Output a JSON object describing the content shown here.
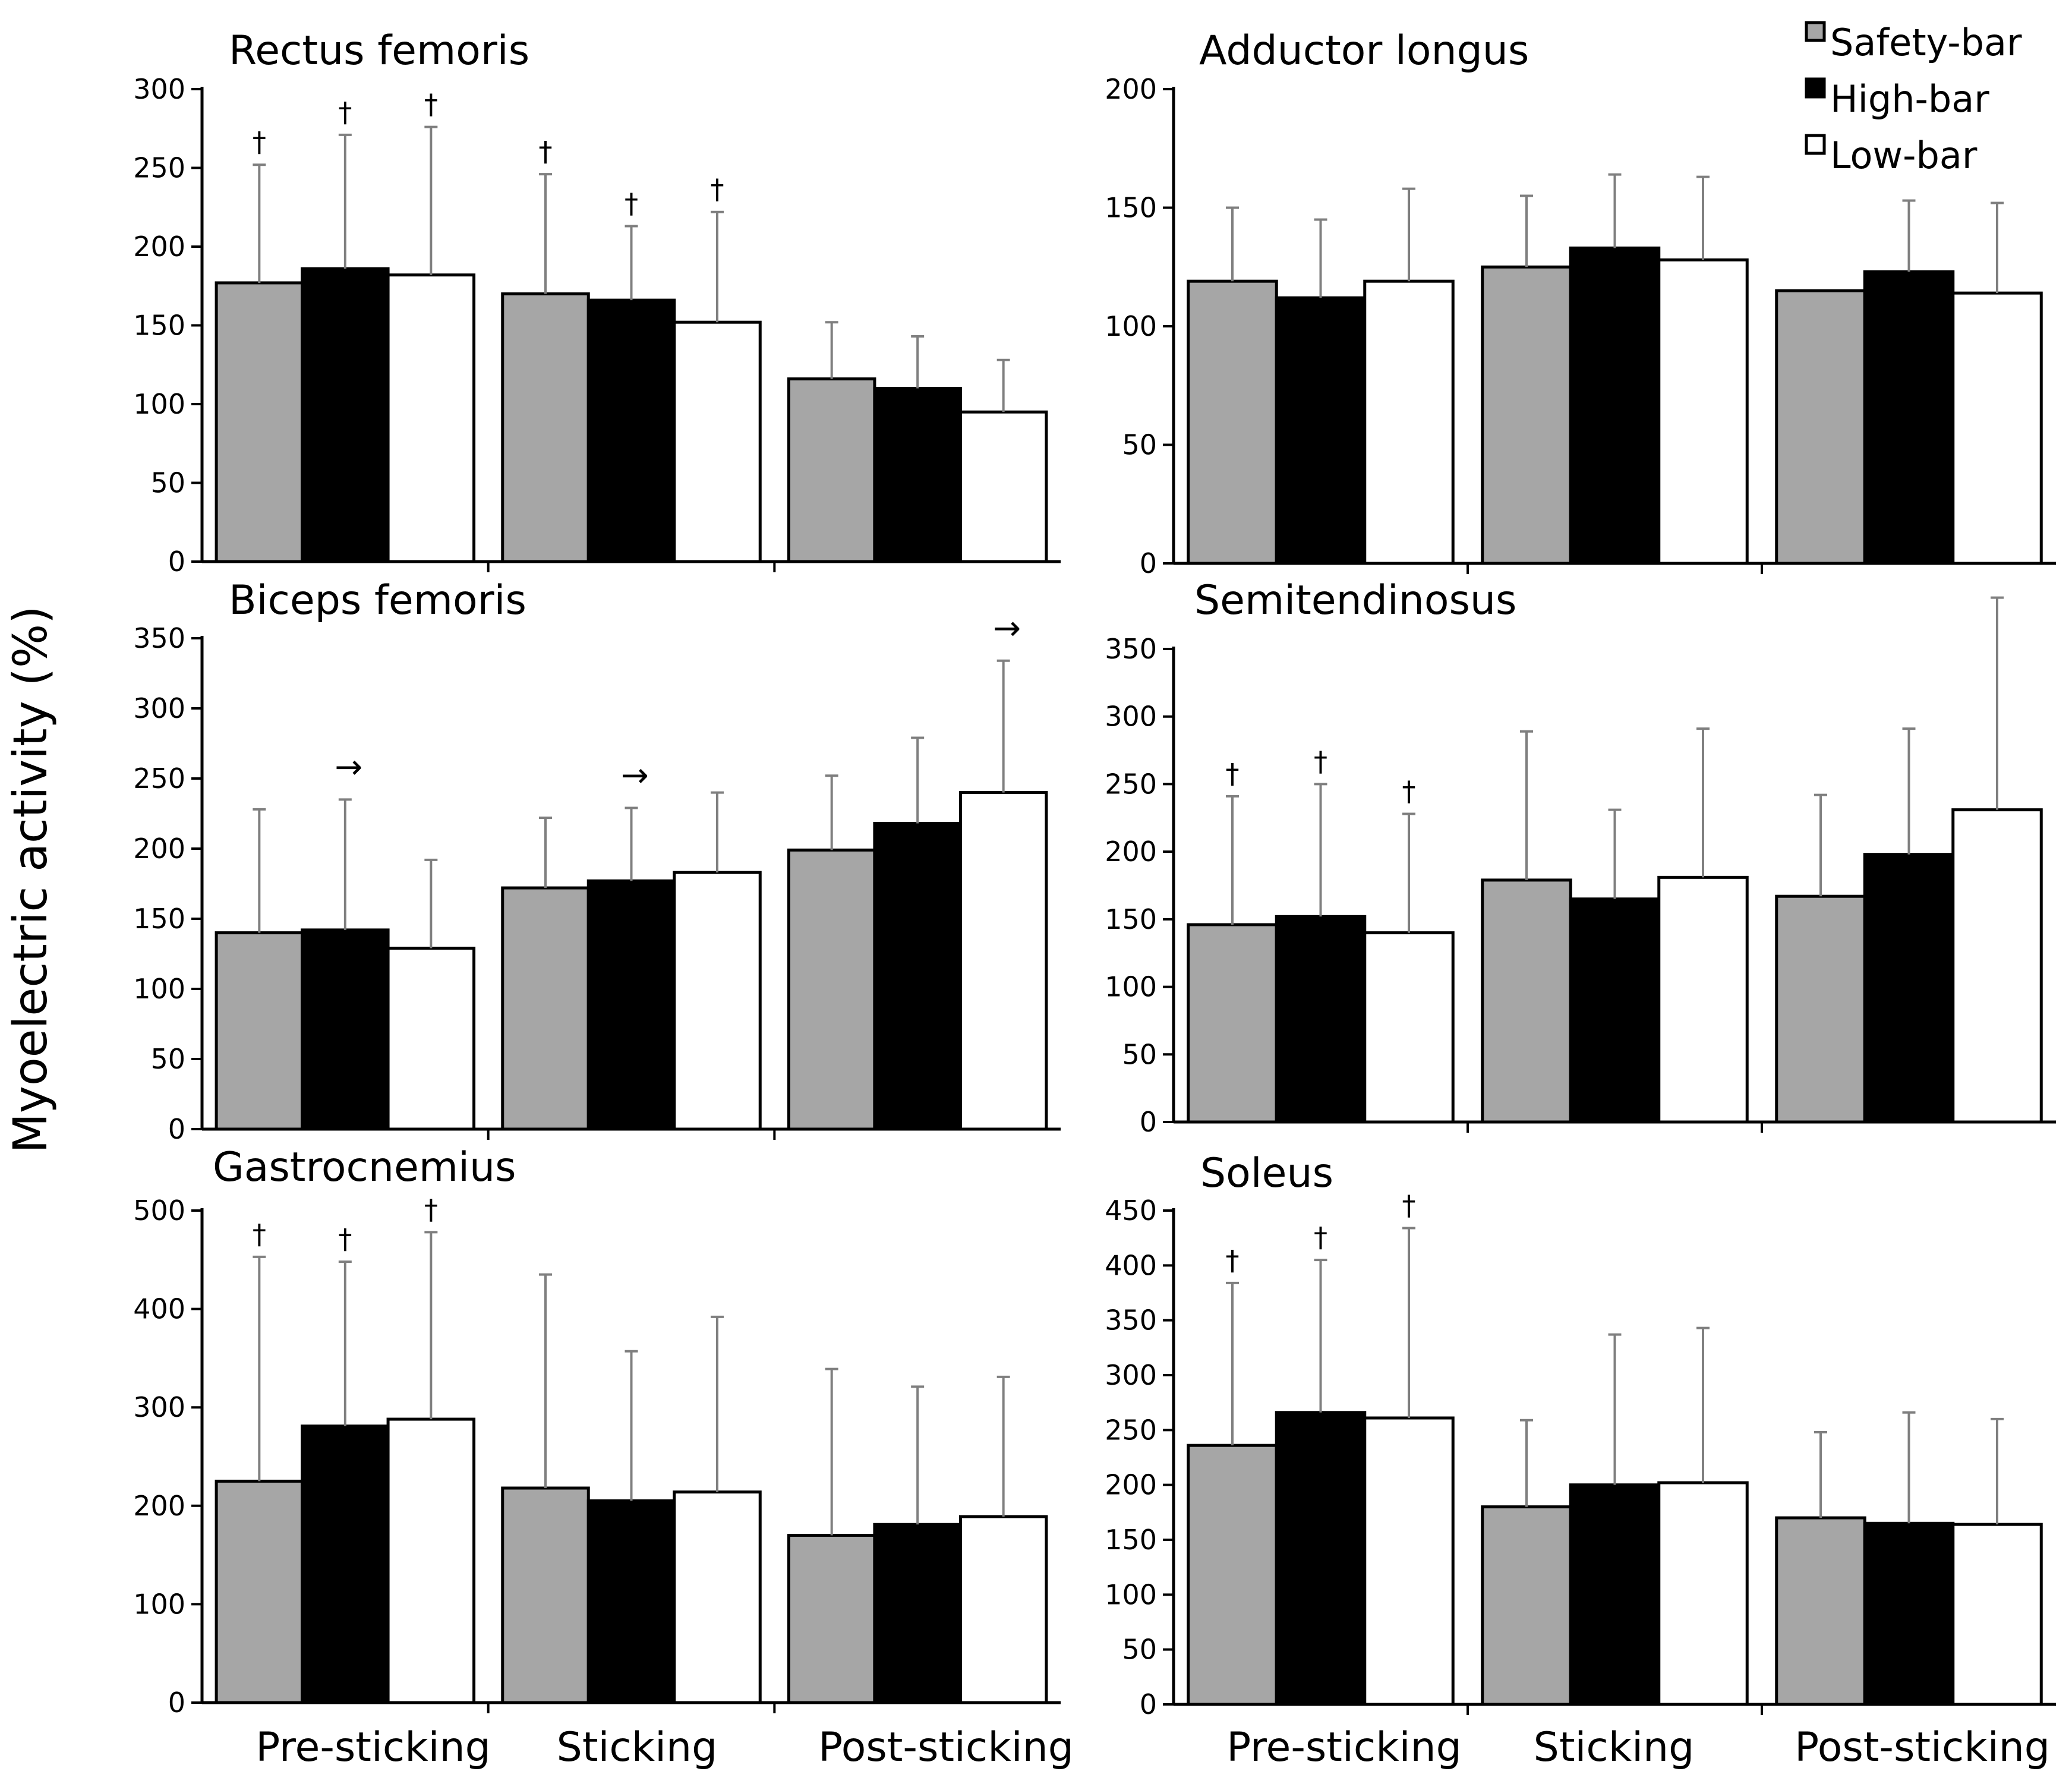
{
  "figure": {
    "ylabel": "Myoelectric activity (%)",
    "legend": [
      {
        "label": "Safety-bar",
        "color": "#a6a6a6"
      },
      {
        "label": "High-bar",
        "color": "#000000"
      },
      {
        "label": "Low-bar",
        "color": "#ffffff"
      }
    ],
    "categories": [
      "Pre-sticking",
      "Sticking",
      "Post-sticking"
    ]
  },
  "chart_data": [
    {
      "type": "bar",
      "title": "Rectus femoris",
      "categories": [
        "Pre-sticking",
        "Sticking",
        "Post-sticking"
      ],
      "ylim": [
        0,
        300
      ],
      "yticks": [
        0,
        50,
        100,
        150,
        200,
        250,
        300
      ],
      "series": [
        {
          "name": "Safety-bar",
          "color": "#a6a6a6",
          "values": [
            177,
            170,
            116
          ],
          "errors": [
            75,
            76,
            36
          ],
          "marks": [
            "†",
            "†",
            ""
          ]
        },
        {
          "name": "High-bar",
          "color": "#000000",
          "values": [
            186,
            166,
            110
          ],
          "errors": [
            85,
            47,
            33
          ],
          "marks": [
            "†",
            "†",
            ""
          ]
        },
        {
          "name": "Low-bar",
          "color": "#ffffff",
          "values": [
            182,
            152,
            95
          ],
          "errors": [
            94,
            70,
            33
          ],
          "marks": [
            "†",
            "†",
            ""
          ]
        }
      ]
    },
    {
      "type": "bar",
      "title": "Adductor longus",
      "categories": [
        "Pre-sticking",
        "Sticking",
        "Post-sticking"
      ],
      "ylim": [
        0,
        200
      ],
      "yticks": [
        0,
        50,
        100,
        150,
        200
      ],
      "series": [
        {
          "name": "Safety-bar",
          "color": "#a6a6a6",
          "values": [
            119,
            125,
            115
          ],
          "errors": [
            31,
            30,
            0
          ],
          "marks": [
            "",
            "",
            ""
          ]
        },
        {
          "name": "High-bar",
          "color": "#000000",
          "values": [
            112,
            133,
            123
          ],
          "errors": [
            33,
            31,
            30
          ],
          "marks": [
            "",
            "",
            ""
          ]
        },
        {
          "name": "Low-bar",
          "color": "#ffffff",
          "values": [
            119,
            128,
            114
          ],
          "errors": [
            39,
            35,
            38
          ],
          "marks": [
            "",
            "",
            ""
          ]
        }
      ]
    },
    {
      "type": "bar",
      "title": "Biceps femoris",
      "categories": [
        "Pre-sticking",
        "Sticking",
        "Post-sticking"
      ],
      "ylim": [
        0,
        350
      ],
      "yticks": [
        0,
        50,
        100,
        150,
        200,
        250,
        300,
        350
      ],
      "series": [
        {
          "name": "Safety-bar",
          "color": "#a6a6a6",
          "values": [
            140,
            172,
            199
          ],
          "errors": [
            88,
            50,
            53
          ],
          "marks": [
            "",
            "",
            ""
          ]
        },
        {
          "name": "High-bar",
          "color": "#000000",
          "values": [
            142,
            177,
            218
          ],
          "errors": [
            93,
            52,
            61
          ],
          "marks": [
            "→",
            "→",
            ""
          ]
        },
        {
          "name": "Low-bar",
          "color": "#ffffff",
          "values": [
            129,
            183,
            240
          ],
          "errors": [
            63,
            57,
            94
          ],
          "marks": [
            "",
            "",
            "→"
          ]
        }
      ]
    },
    {
      "type": "bar",
      "title": "Semitendinosus",
      "categories": [
        "Pre-sticking",
        "Sticking",
        "Post-sticking"
      ],
      "ylim": [
        0,
        350
      ],
      "yticks": [
        0,
        50,
        100,
        150,
        200,
        250,
        300,
        350
      ],
      "series": [
        {
          "name": "Safety-bar",
          "color": "#a6a6a6",
          "values": [
            146,
            179,
            167
          ],
          "errors": [
            95,
            110,
            75
          ],
          "marks": [
            "†",
            "",
            ""
          ]
        },
        {
          "name": "High-bar",
          "color": "#000000",
          "values": [
            152,
            165,
            198
          ],
          "errors": [
            98,
            66,
            93
          ],
          "marks": [
            "†",
            "",
            ""
          ]
        },
        {
          "name": "Low-bar",
          "color": "#ffffff",
          "values": [
            140,
            181,
            231
          ],
          "errors": [
            88,
            110,
            157
          ],
          "marks": [
            "†",
            "",
            ""
          ]
        }
      ]
    },
    {
      "type": "bar",
      "title": "Gastrocnemius",
      "categories": [
        "Pre-sticking",
        "Sticking",
        "Post-sticking"
      ],
      "ylim": [
        0,
        500
      ],
      "yticks": [
        0,
        100,
        200,
        300,
        400,
        500
      ],
      "series": [
        {
          "name": "Safety-bar",
          "color": "#a6a6a6",
          "values": [
            225,
            218,
            170
          ],
          "errors": [
            228,
            217,
            169
          ],
          "marks": [
            "†",
            "",
            ""
          ]
        },
        {
          "name": "High-bar",
          "color": "#000000",
          "values": [
            281,
            205,
            181
          ],
          "errors": [
            167,
            152,
            140
          ],
          "marks": [
            "†",
            "",
            ""
          ]
        },
        {
          "name": "Low-bar",
          "color": "#ffffff",
          "values": [
            288,
            214,
            189
          ],
          "errors": [
            190,
            178,
            142
          ],
          "marks": [
            "†",
            "",
            ""
          ]
        }
      ]
    },
    {
      "type": "bar",
      "title": "Soleus",
      "categories": [
        "Pre-sticking",
        "Sticking",
        "Post-sticking"
      ],
      "ylim": [
        0,
        450
      ],
      "yticks": [
        0,
        50,
        100,
        150,
        200,
        250,
        300,
        350,
        400,
        450
      ],
      "series": [
        {
          "name": "Safety-bar",
          "color": "#a6a6a6",
          "values": [
            236,
            180,
            170
          ],
          "errors": [
            148,
            79,
            78
          ],
          "marks": [
            "†",
            "",
            ""
          ]
        },
        {
          "name": "High-bar",
          "color": "#000000",
          "values": [
            266,
            200,
            165
          ],
          "errors": [
            139,
            137,
            101
          ],
          "marks": [
            "†",
            "",
            ""
          ]
        },
        {
          "name": "Low-bar",
          "color": "#ffffff",
          "values": [
            261,
            202,
            164
          ],
          "errors": [
            173,
            141,
            96
          ],
          "marks": [
            "†",
            "",
            ""
          ]
        }
      ]
    }
  ]
}
